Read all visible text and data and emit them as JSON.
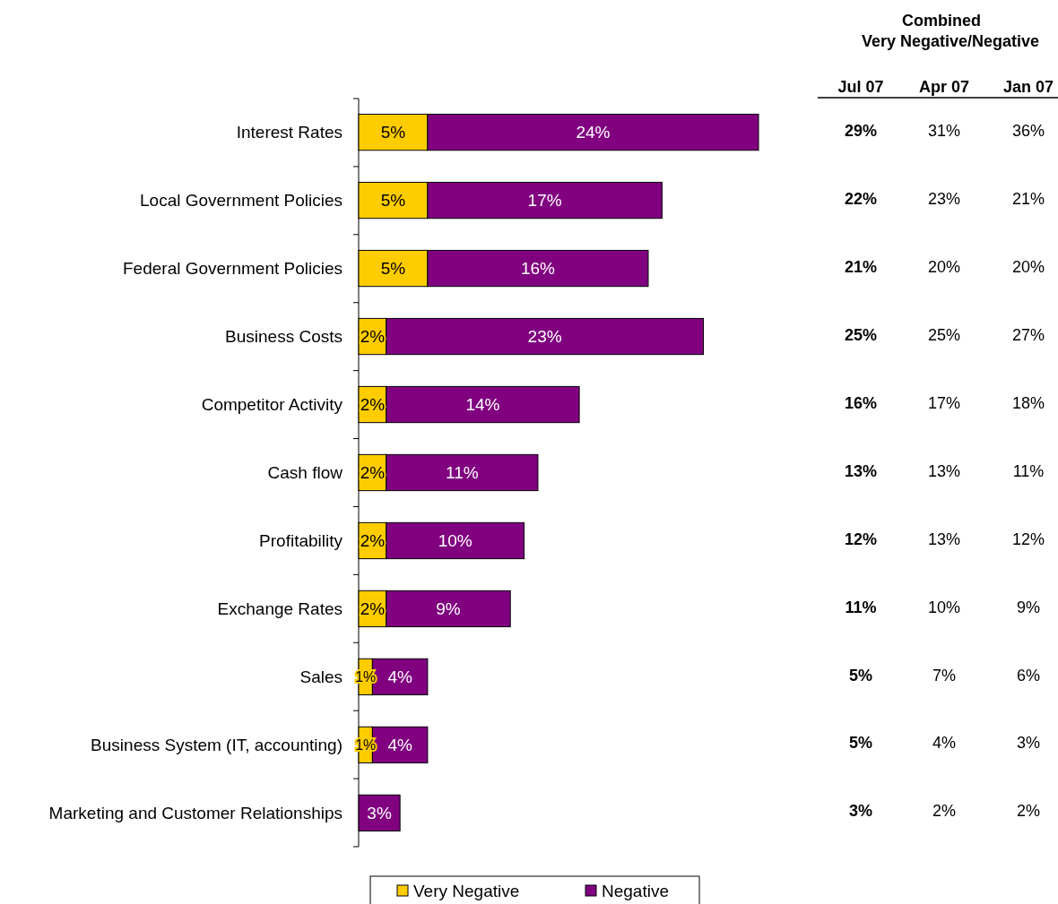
{
  "chart_data": [
    {
      "type": "bar",
      "orientation": "horizontal",
      "stacked": true,
      "categories": [
        "Interest Rates",
        "Local Government Policies",
        "Federal Government Policies",
        "Business Costs",
        "Competitor Activity",
        "Cash flow",
        "Profitability",
        "Exchange Rates",
        "Sales",
        "Business System (IT, accounting)",
        "Marketing and Customer Relationships"
      ],
      "series": [
        {
          "name": "Very Negative",
          "color": "#ffcc00",
          "values": [
            5,
            5,
            5,
            2,
            2,
            2,
            2,
            2,
            1,
            1,
            null
          ],
          "value_labels": [
            "5%",
            "5%",
            "5%",
            "2%",
            "2%",
            "2%",
            "2%",
            "2%",
            "1%",
            "1%",
            null
          ]
        },
        {
          "name": "Negative",
          "color": "#800080",
          "values": [
            24,
            17,
            16,
            23,
            14,
            11,
            10,
            9,
            4,
            4,
            3
          ],
          "value_labels": [
            "24%",
            "17%",
            "16%",
            "23%",
            "14%",
            "11%",
            "10%",
            "9%",
            "4%",
            "4%",
            "3%"
          ]
        }
      ],
      "legend": "bottom"
    },
    {
      "type": "other",
      "title": "Combined Very Negative/Negative",
      "categories": [
        "Jul 07",
        "Apr 07",
        "Jan 07"
      ],
      "annotations": [
        "29%",
        "31%",
        "36%",
        "22%",
        "23%",
        "21%",
        "21%",
        "20%",
        "20%",
        "25%",
        "25%",
        "27%",
        "16%",
        "17%",
        "18%",
        "13%",
        "13%",
        "11%",
        "12%",
        "13%",
        "12%",
        "11%",
        "10%",
        "9%",
        "5%",
        "7%",
        "6%",
        "5%",
        "4%",
        "3%",
        "3%",
        "2%",
        "2%"
      ]
    }
  ]
}
